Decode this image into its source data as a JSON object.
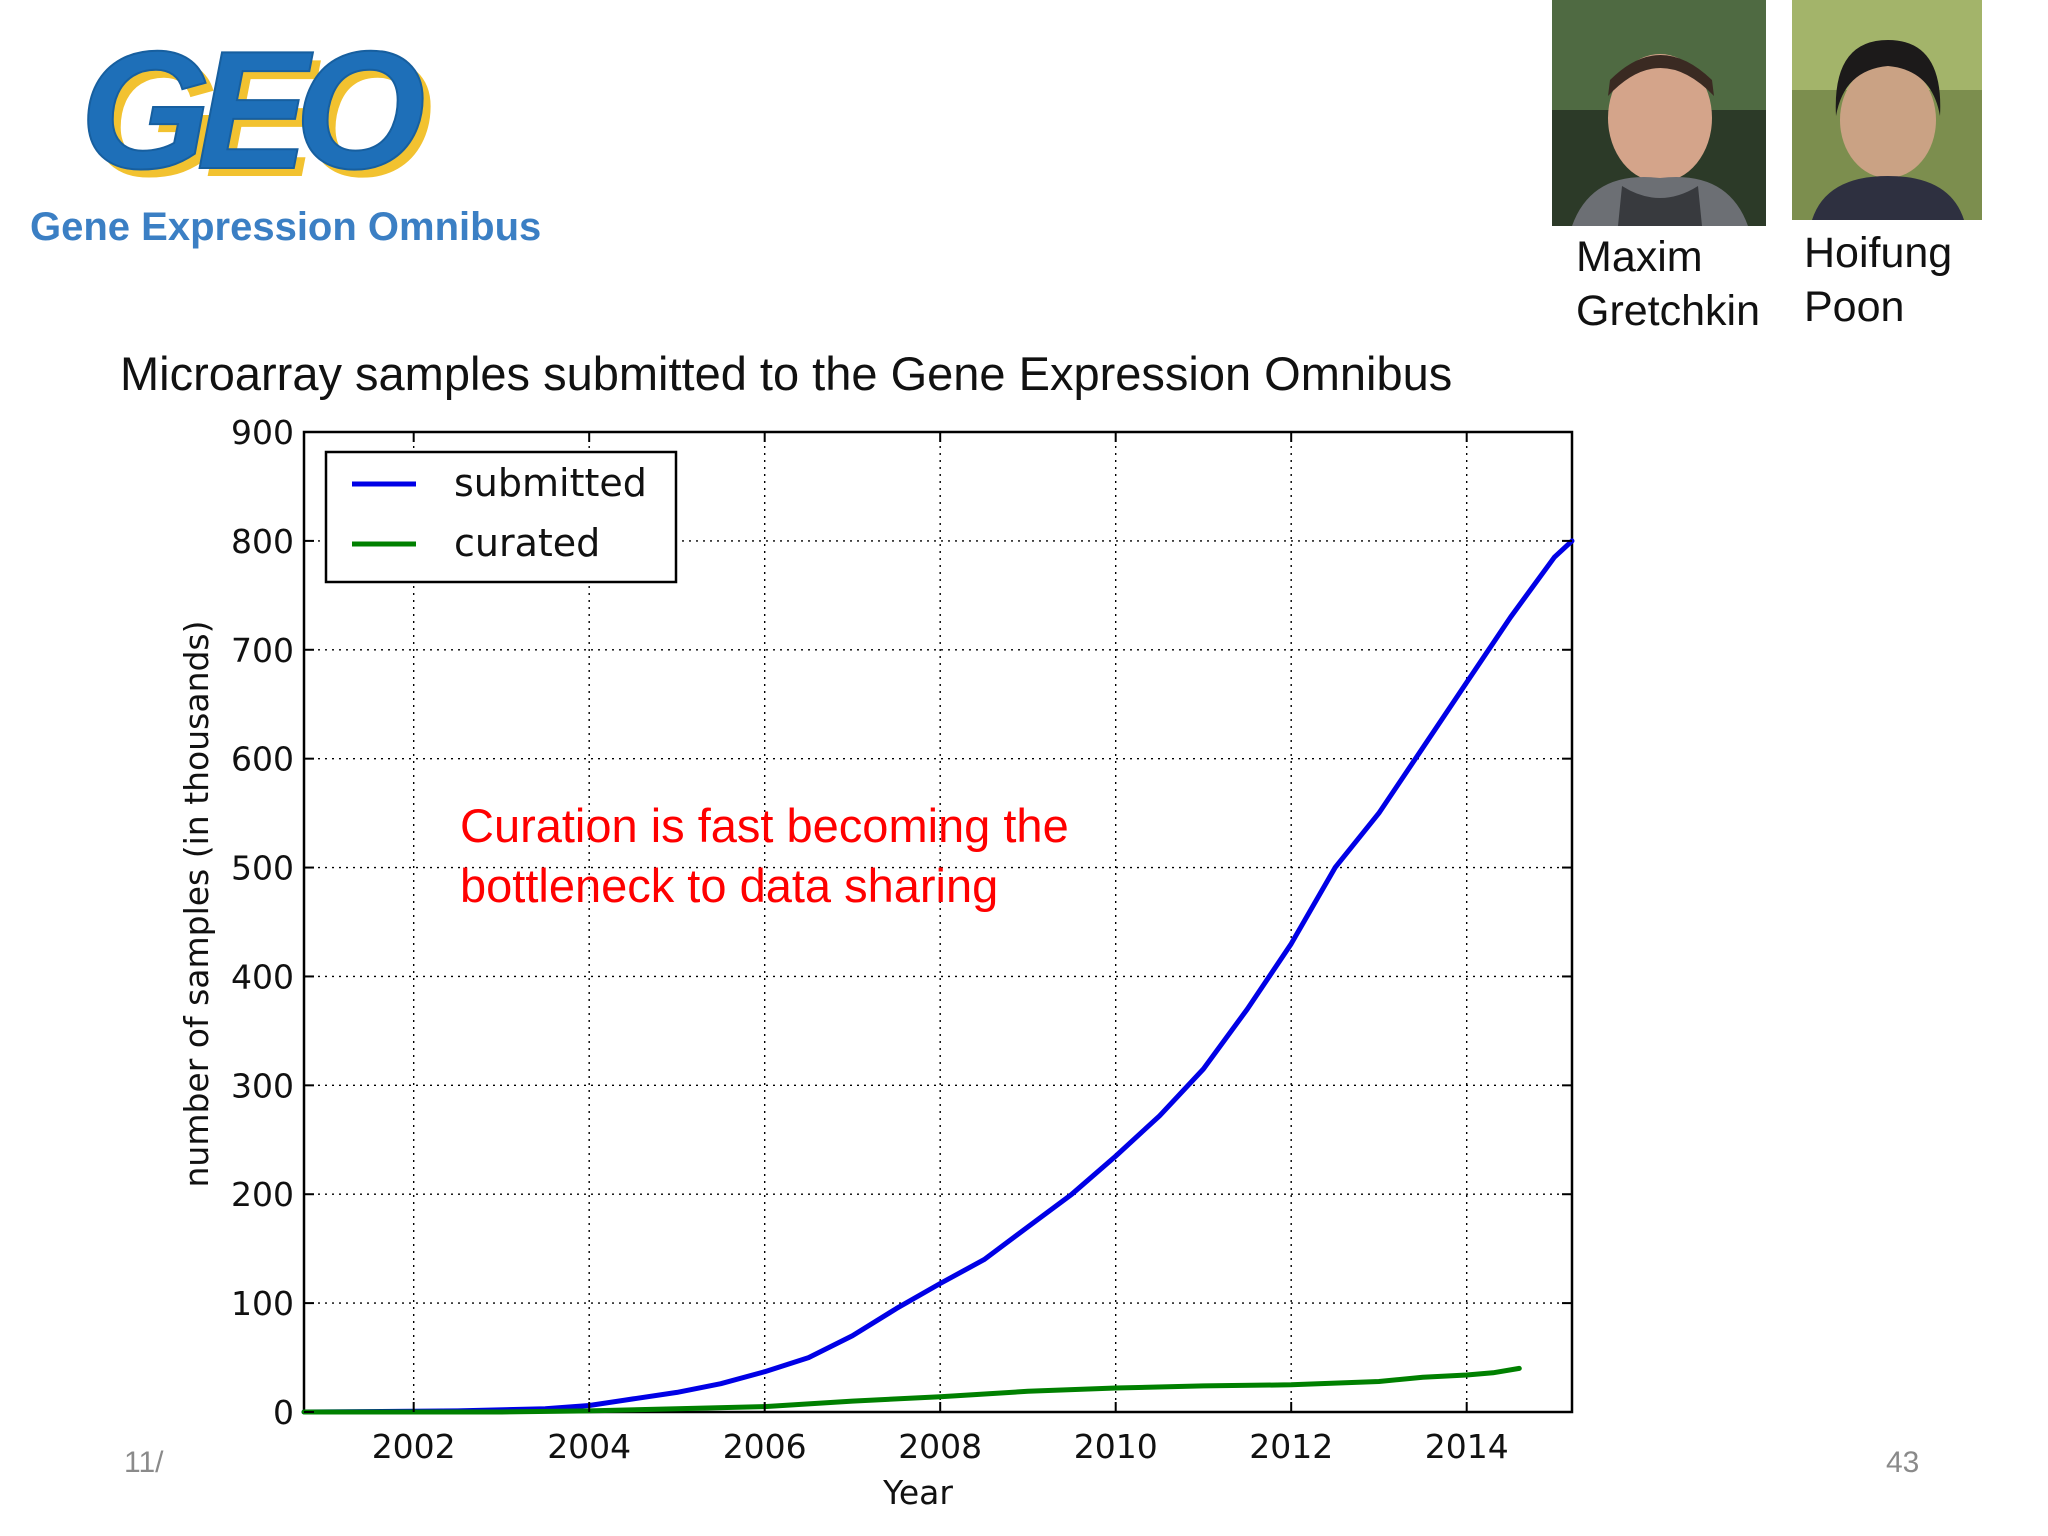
{
  "logo": {
    "mark": "GEO",
    "caption": "Gene Expression Omnibus"
  },
  "people": [
    {
      "first": "Maxim",
      "last": "Gretchkin"
    },
    {
      "first": "Hoifung",
      "last": "Poon"
    }
  ],
  "slide": {
    "title": "Microarray samples submitted to the Gene Expression Omnibus",
    "annotation_line1": "Curation is fast becoming the",
    "annotation_line2": "bottleneck to data sharing",
    "footer_date": "11/",
    "page_number": "43"
  },
  "colors": {
    "submitted": "#0000e6",
    "curated": "#008000",
    "annotation": "#ff0000",
    "logo_blue": "#1e6fb8",
    "logo_yellow": "#f2c230"
  },
  "chart_data": {
    "type": "line",
    "xlabel": "Year",
    "ylabel": "number of samples (in thousands)",
    "xlim": [
      2000.75,
      2015.2
    ],
    "ylim": [
      0,
      900
    ],
    "xticks": [
      2002,
      2004,
      2006,
      2008,
      2010,
      2012,
      2014
    ],
    "yticks": [
      0,
      100,
      200,
      300,
      400,
      500,
      600,
      700,
      800,
      900
    ],
    "grid": true,
    "legend_position": "top-left",
    "series": [
      {
        "name": "submitted",
        "x": [
          2000.75,
          2002.5,
          2003.5,
          2004.0,
          2004.5,
          2005.0,
          2005.5,
          2006.0,
          2006.5,
          2007.0,
          2007.5,
          2008.0,
          2008.5,
          2009.0,
          2009.5,
          2010.0,
          2010.5,
          2011.0,
          2011.5,
          2012.0,
          2012.5,
          2013.0,
          2013.5,
          2014.0,
          2014.5,
          2015.0,
          2015.2
        ],
        "y": [
          0,
          1,
          3,
          6,
          12,
          18,
          26,
          37,
          50,
          70,
          95,
          118,
          140,
          170,
          200,
          235,
          272,
          315,
          370,
          430,
          500,
          550,
          610,
          670,
          730,
          785,
          800
        ]
      },
      {
        "name": "curated",
        "x": [
          2000.75,
          2003.0,
          2004.0,
          2005.0,
          2006.0,
          2007.0,
          2008.0,
          2009.0,
          2010.0,
          2011.0,
          2012.0,
          2013.0,
          2013.5,
          2014.0,
          2014.3,
          2014.6
        ],
        "y": [
          0,
          0,
          1,
          3,
          5,
          10,
          14,
          19,
          22,
          24,
          25,
          28,
          32,
          34,
          36,
          40
        ]
      }
    ]
  }
}
